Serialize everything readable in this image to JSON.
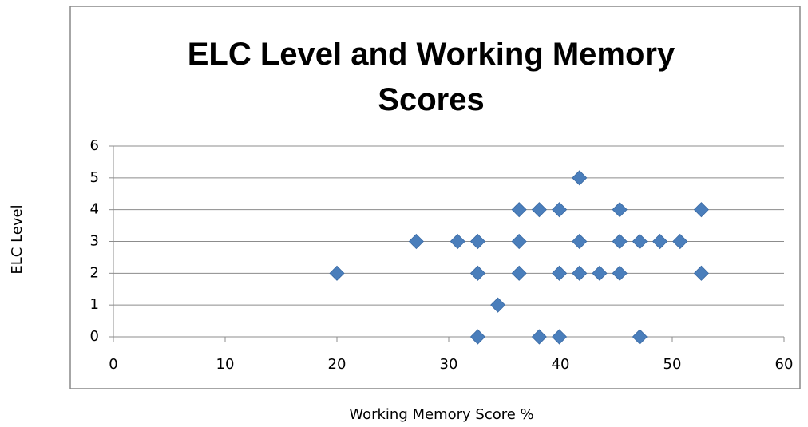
{
  "chart_data": {
    "type": "scatter",
    "title": "ELC Level and Working Memory Scores",
    "x_label": "Working Memory Score %",
    "y_label": "ELC Level",
    "color": "#4a7ebb",
    "x": [
      32.6,
      38.1,
      39.9,
      47.1,
      34.4,
      20,
      32.6,
      36.3,
      39.9,
      41.7,
      43.5,
      45.3,
      52.6,
      27.1,
      30.8,
      32.6,
      36.3,
      41.7,
      45.3,
      47.1,
      48.9,
      50.7,
      36.3,
      38.1,
      39.9,
      45.3,
      52.6,
      41.7
    ],
    "values": [
      0,
      0,
      0,
      0,
      1,
      2,
      2,
      2,
      2,
      2,
      2,
      2,
      2,
      3,
      3,
      3,
      3,
      3,
      3,
      3,
      3,
      3,
      4,
      4,
      4,
      4,
      4,
      5
    ],
    "xlim": [
      0,
      60
    ],
    "xticks": [
      0,
      10,
      20,
      30,
      40,
      50,
      60
    ],
    "ylim": [
      0,
      6
    ],
    "yticks": [
      0,
      1,
      2,
      3,
      4,
      5,
      6
    ],
    "grid": true
  }
}
